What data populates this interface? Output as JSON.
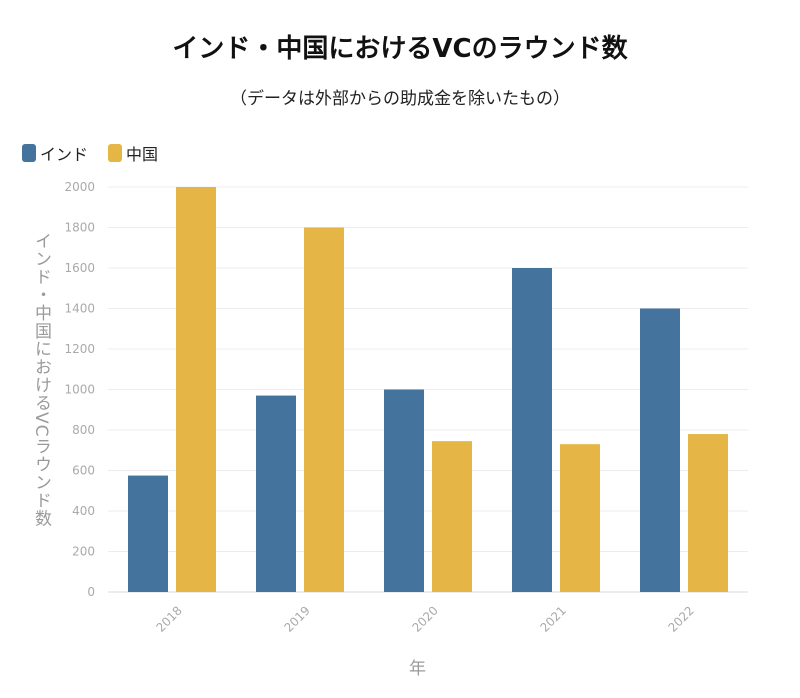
{
  "chart_data": {
    "type": "bar",
    "title": "インド・中国におけるVCのラウンド数",
    "subtitle": "（データは外部からの助成金を除いたもの）",
    "xlabel": "年",
    "ylabel": "インド・中国におけるVCラウンド数",
    "categories": [
      "2018",
      "2019",
      "2020",
      "2021",
      "2022"
    ],
    "series": [
      {
        "name": "インド",
        "color": "#44739e",
        "values": [
          575,
          970,
          1000,
          1600,
          1400
        ]
      },
      {
        "name": "中国",
        "color": "#e5b645",
        "values": [
          2000,
          1800,
          745,
          730,
          780
        ]
      }
    ],
    "ylim": [
      0,
      2000
    ],
    "yticks": [
      0,
      200,
      400,
      600,
      800,
      1000,
      1200,
      1400,
      1600,
      1800,
      2000
    ],
    "grid": true,
    "legend_position": "top-left"
  }
}
